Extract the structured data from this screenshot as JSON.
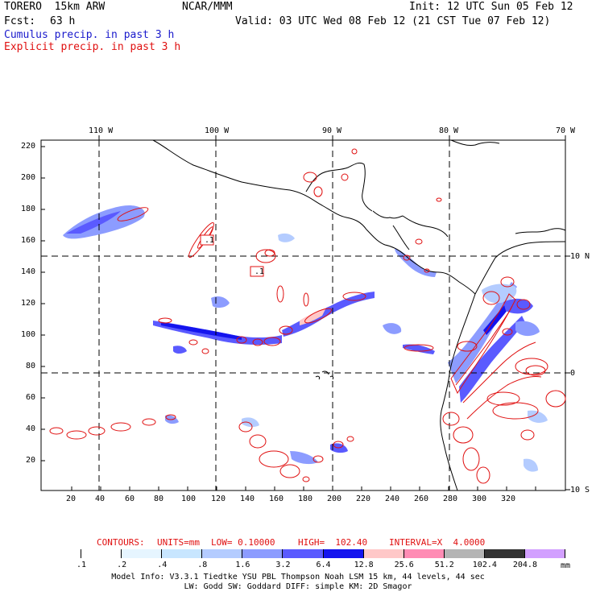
{
  "header": {
    "model": "TORERO  15km ARW",
    "org": "NCAR/MMM",
    "init": "Init: 12 UTC Sun 05 Feb 12",
    "fcst_label": "Fcst:",
    "fcst_value": "63 h",
    "valid": "Valid: 03 UTC Wed 08 Feb 12 (21 CST Tue 07 Feb 12)",
    "cumulus": "Cumulus precip. in past 3 h",
    "explicit": "Explicit precip. in past 3 h"
  },
  "axes": {
    "top_lon": [
      "110 W",
      "100 W",
      "90 W",
      "80 W",
      "70 W"
    ],
    "right_lat": [
      "10 N",
      "0",
      "10 S"
    ],
    "left_ticks": [
      "220",
      "200",
      "180",
      "160",
      "140",
      "120",
      "100",
      "80",
      "60",
      "40",
      "20"
    ],
    "bottom_ticks": [
      "20",
      "40",
      "60",
      "80",
      "100",
      "120",
      "140",
      "160",
      "180",
      "200",
      "220",
      "240",
      "260",
      "280",
      "300",
      "320"
    ]
  },
  "contour_labels": [
    ".1",
    ".1"
  ],
  "contours_line": {
    "contours": "CONTOURS:",
    "units": "UNITS=mm",
    "low": "LOW= 0.10000",
    "high": "HIGH=  102.40",
    "interval": "INTERVAL=X  4.0000"
  },
  "colorbar": {
    "colors": [
      "#ffffff",
      "#ffffff",
      "#e6f5ff",
      "#c8e6ff",
      "#b4ccff",
      "#8c9cff",
      "#5a5aff",
      "#1414ee",
      "#ffc8c8",
      "#ff8cb4",
      "#b4b4b4",
      "#323232",
      "#d2a0ff"
    ],
    "labels": [
      ".1",
      ".2",
      ".4",
      ".8",
      "1.6",
      "3.2",
      "6.4",
      "12.8",
      "25.6",
      "51.2",
      "102.4",
      "204.8"
    ],
    "unit": "mm"
  },
  "footer": {
    "line1": "Model Info: V3.3.1    Tiedtke YSU PBL  Thompson    Noah LSM  15 km,   44 levels,   44 sec",
    "line2": "LW: Godd SW: Goddard DIFF: simple KM: 2D Smagor"
  }
}
